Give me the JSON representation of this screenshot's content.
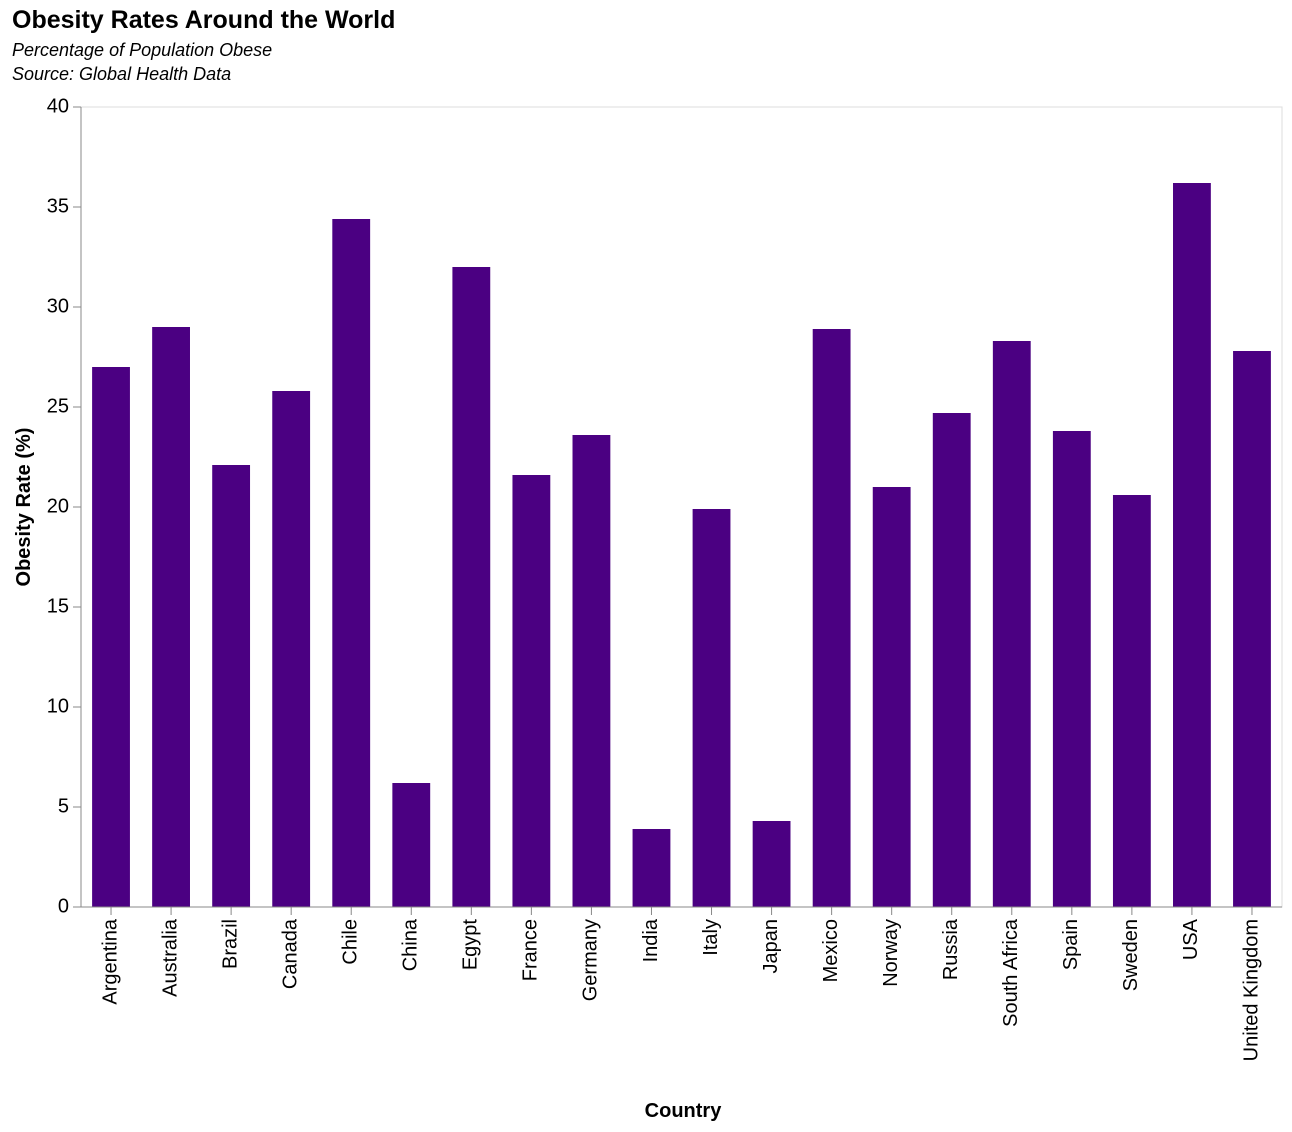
{
  "chart_data": {
    "type": "bar",
    "title": "Obesity Rates Around the World",
    "subtitle": [
      "Percentage of Population Obese",
      "Source: Global Health Data"
    ],
    "xlabel": "Country",
    "ylabel": "Obesity Rate (%)",
    "ylim": [
      0,
      40
    ],
    "yticks": [
      0,
      5,
      10,
      15,
      20,
      25,
      30,
      35,
      40
    ],
    "grid": false,
    "bar_color": "#4b0082",
    "categories": [
      "Argentina",
      "Australia",
      "Brazil",
      "Canada",
      "Chile",
      "China",
      "Egypt",
      "France",
      "Germany",
      "India",
      "Italy",
      "Japan",
      "Mexico",
      "Norway",
      "Russia",
      "South Africa",
      "Spain",
      "Sweden",
      "USA",
      "United Kingdom"
    ],
    "values": [
      27.0,
      29.0,
      22.1,
      25.8,
      34.4,
      6.2,
      32.0,
      21.6,
      23.6,
      3.9,
      19.9,
      4.3,
      28.9,
      21.0,
      24.7,
      28.3,
      23.8,
      20.6,
      36.2,
      27.8
    ]
  }
}
